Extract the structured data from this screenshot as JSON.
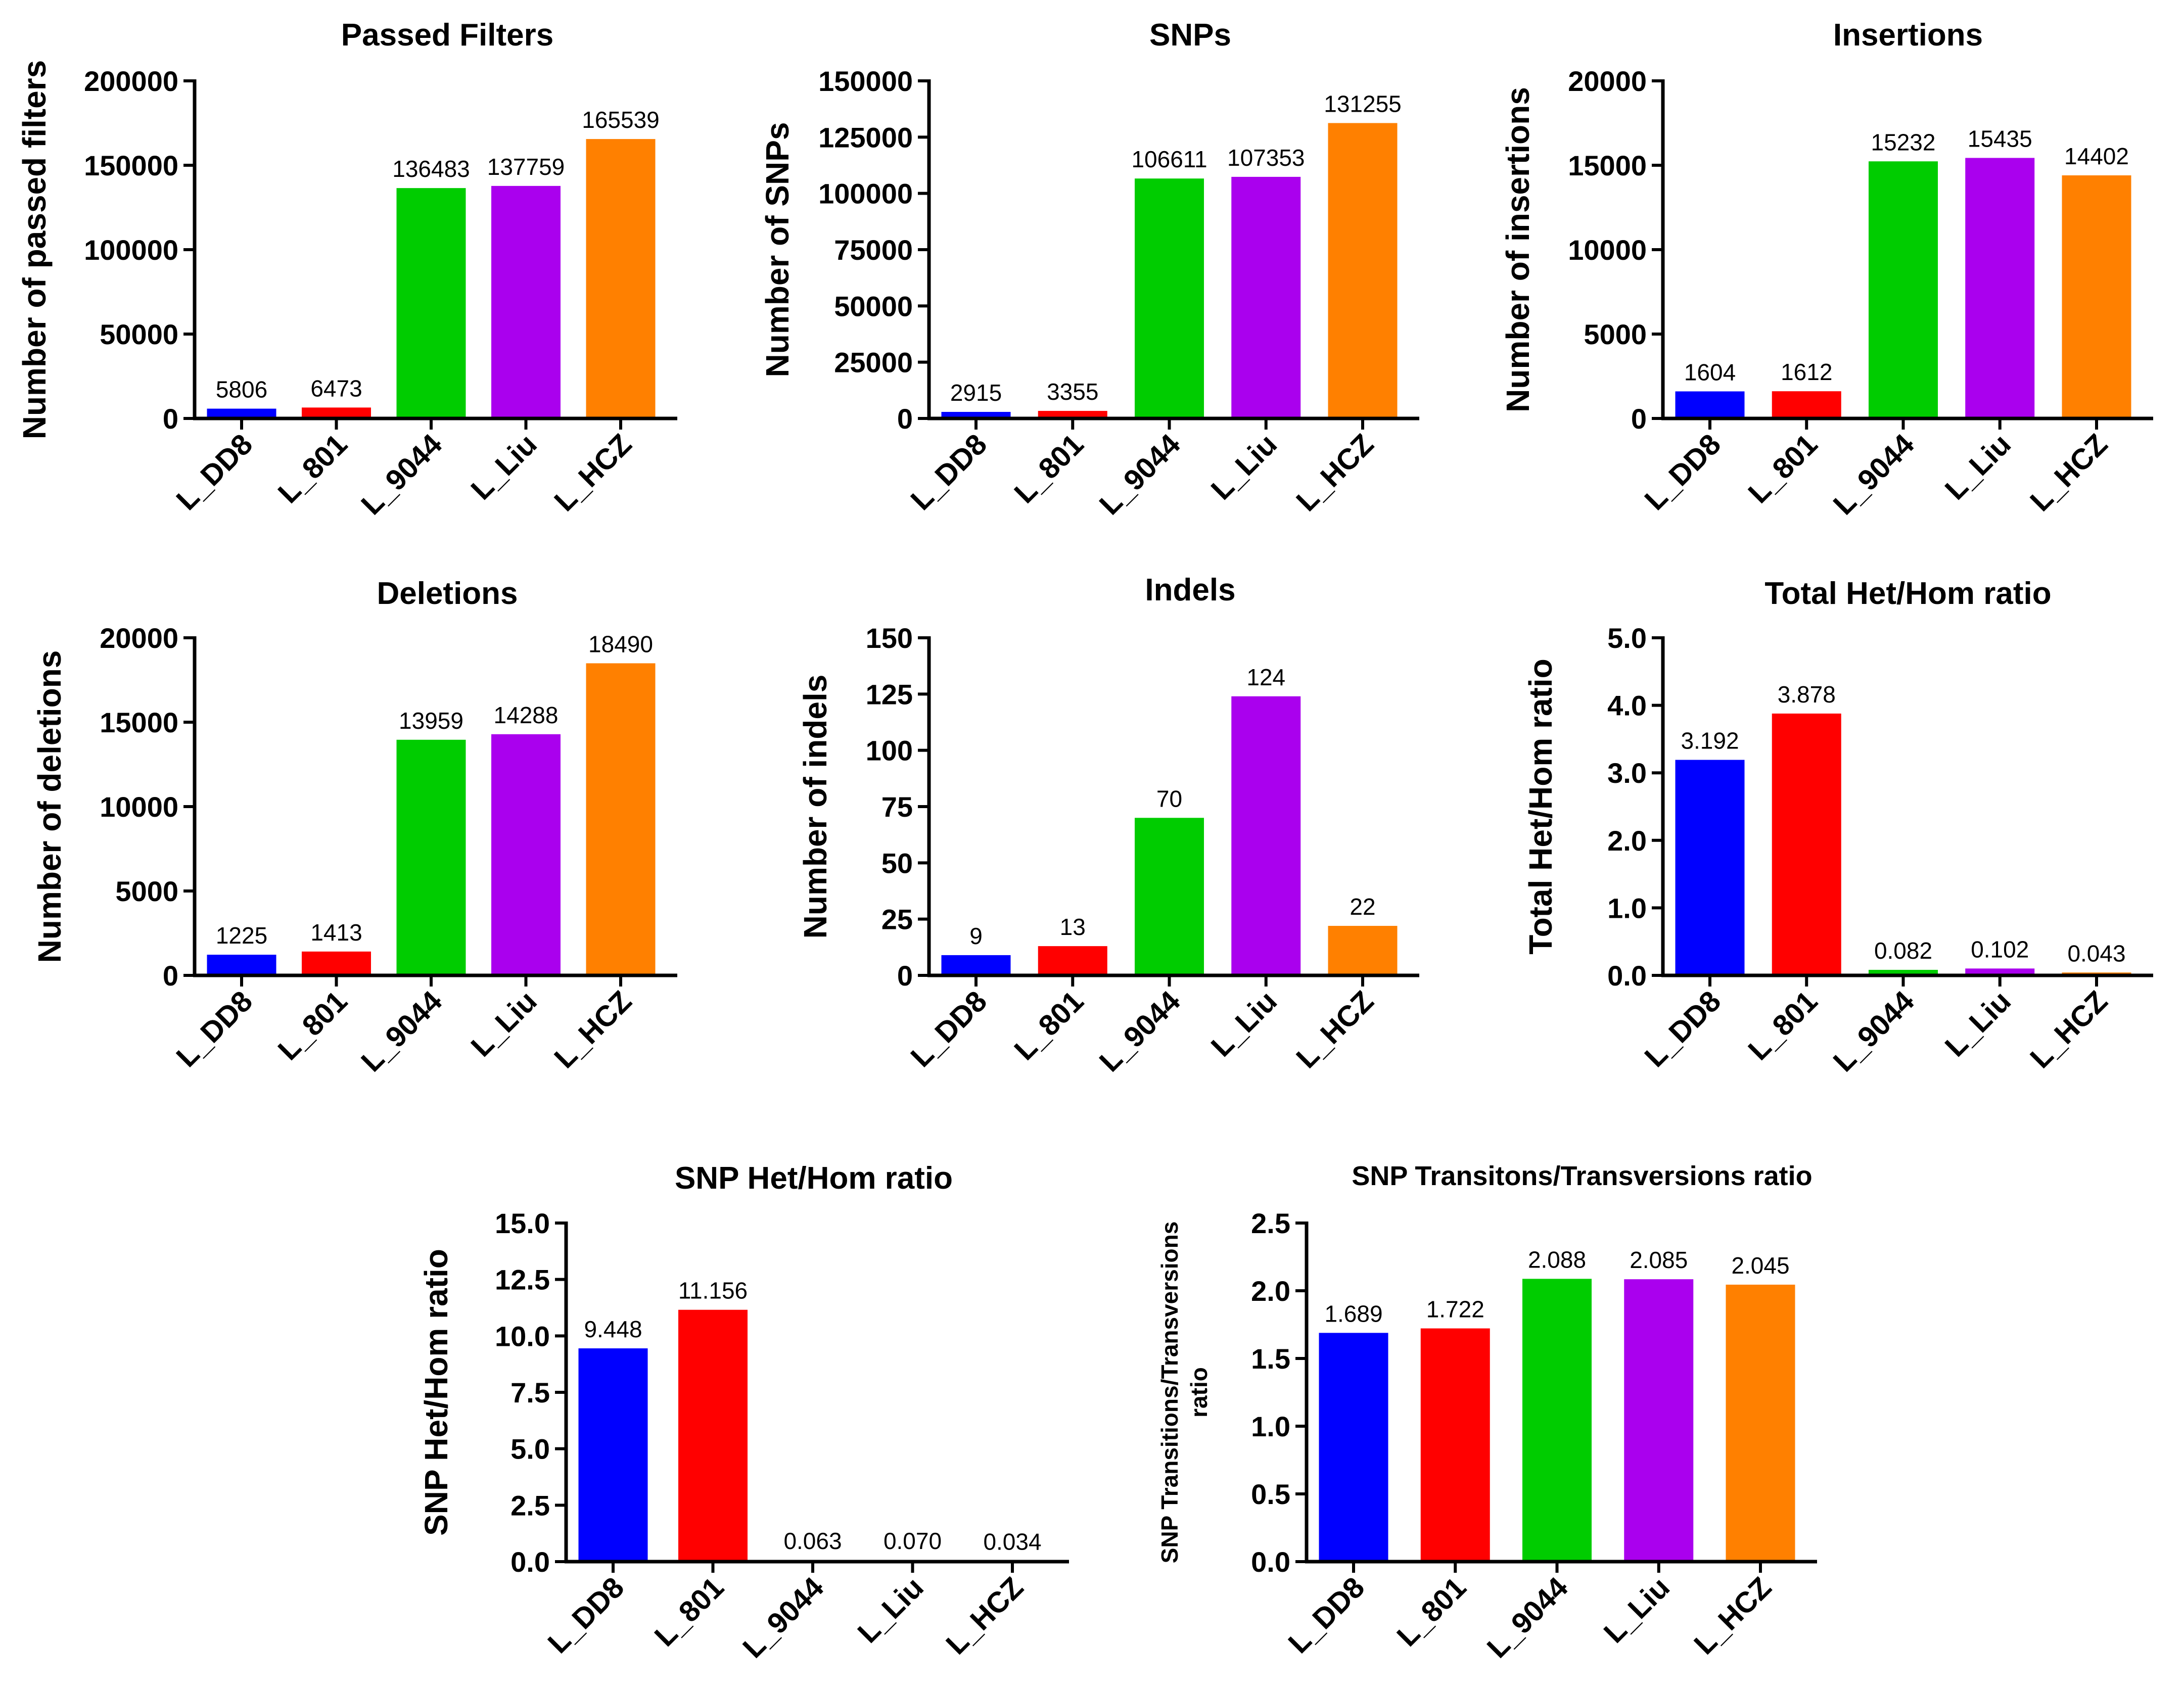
{
  "chart_data": [
    {
      "type": "bar",
      "title": "Passed Filters",
      "ylabel": "Number of passed filters",
      "categories": [
        "L_DD8",
        "L_801",
        "L_9044",
        "L_Liu",
        "L_HCZ"
      ],
      "values": [
        5806,
        6473,
        136483,
        137759,
        165539
      ],
      "value_labels": [
        "5806",
        "6473",
        "136483",
        "137759",
        "165539"
      ],
      "ylim": [
        0,
        200000
      ],
      "yticks": [
        0,
        50000,
        100000,
        150000,
        200000
      ],
      "ytick_labels": [
        "0",
        "50000",
        "100000",
        "150000",
        "200000"
      ],
      "colors": [
        "#0000ff",
        "#ff0000",
        "#00cc00",
        "#aa00ee",
        "#ff8000"
      ]
    },
    {
      "type": "bar",
      "title": "SNPs",
      "ylabel": "Number of SNPs",
      "categories": [
        "L_DD8",
        "L_801",
        "L_9044",
        "L_Liu",
        "L_HCZ"
      ],
      "values": [
        2915,
        3355,
        106611,
        107353,
        131255
      ],
      "value_labels": [
        "2915",
        "3355",
        "106611",
        "107353",
        "131255"
      ],
      "ylim": [
        0,
        150000
      ],
      "yticks": [
        0,
        25000,
        50000,
        75000,
        100000,
        125000,
        150000
      ],
      "ytick_labels": [
        "0",
        "25000",
        "50000",
        "75000",
        "100000",
        "125000",
        "150000"
      ],
      "colors": [
        "#0000ff",
        "#ff0000",
        "#00cc00",
        "#aa00ee",
        "#ff8000"
      ]
    },
    {
      "type": "bar",
      "title": "Insertions",
      "ylabel": "Number of insertions",
      "categories": [
        "L_DD8",
        "L_801",
        "L_9044",
        "L_Liu",
        "L_HCZ"
      ],
      "values": [
        1604,
        1612,
        15232,
        15435,
        14402
      ],
      "value_labels": [
        "1604",
        "1612",
        "15232",
        "15435",
        "14402"
      ],
      "ylim": [
        0,
        20000
      ],
      "yticks": [
        0,
        5000,
        10000,
        15000,
        20000
      ],
      "ytick_labels": [
        "0",
        "5000",
        "10000",
        "15000",
        "20000"
      ],
      "colors": [
        "#0000ff",
        "#ff0000",
        "#00cc00",
        "#aa00ee",
        "#ff8000"
      ]
    },
    {
      "type": "bar",
      "title": "Deletions",
      "ylabel": "Number of deletions",
      "categories": [
        "L_DD8",
        "L_801",
        "L_9044",
        "L_Liu",
        "L_HCZ"
      ],
      "values": [
        1225,
        1413,
        13959,
        14288,
        18490
      ],
      "value_labels": [
        "1225",
        "1413",
        "13959",
        "14288",
        "18490"
      ],
      "ylim": [
        0,
        20000
      ],
      "yticks": [
        0,
        5000,
        10000,
        15000,
        20000
      ],
      "ytick_labels": [
        "0",
        "5000",
        "10000",
        "15000",
        "20000"
      ],
      "colors": [
        "#0000ff",
        "#ff0000",
        "#00cc00",
        "#aa00ee",
        "#ff8000"
      ]
    },
    {
      "type": "bar",
      "title": "Indels",
      "ylabel": "Number of indels",
      "categories": [
        "L_DD8",
        "L_801",
        "L_9044",
        "L_Liu",
        "L_HCZ"
      ],
      "values": [
        9,
        13,
        70,
        124,
        22
      ],
      "value_labels": [
        "9",
        "13",
        "70",
        "124",
        "22"
      ],
      "ylim": [
        0,
        150
      ],
      "yticks": [
        0,
        25,
        50,
        75,
        100,
        125,
        150
      ],
      "ytick_labels": [
        "0",
        "25",
        "50",
        "75",
        "100",
        "125",
        "150"
      ],
      "colors": [
        "#0000ff",
        "#ff0000",
        "#00cc00",
        "#aa00ee",
        "#ff8000"
      ]
    },
    {
      "type": "bar",
      "title": "Total Het/Hom ratio",
      "ylabel": "Total Het/Hom ratio",
      "categories": [
        "L_DD8",
        "L_801",
        "L_9044",
        "L_Liu",
        "L_HCZ"
      ],
      "values": [
        3.192,
        3.878,
        0.082,
        0.102,
        0.043
      ],
      "value_labels": [
        "3.192",
        "3.878",
        "0.082",
        "0.102",
        "0.043"
      ],
      "ylim": [
        0,
        5
      ],
      "yticks": [
        0,
        1,
        2,
        3,
        4,
        5
      ],
      "ytick_labels": [
        "0.0",
        "1.0",
        "2.0",
        "3.0",
        "4.0",
        "5.0"
      ],
      "colors": [
        "#0000ff",
        "#ff0000",
        "#00cc00",
        "#aa00ee",
        "#ff8000"
      ]
    },
    {
      "type": "bar",
      "title": "SNP Het/Hom ratio",
      "ylabel": "SNP Het/Hom ratio",
      "categories": [
        "L_DD8",
        "L_801",
        "L_9044",
        "L_Liu",
        "L_HCZ"
      ],
      "values": [
        9.448,
        11.156,
        0.063,
        0.07,
        0.034
      ],
      "value_labels": [
        "9.448",
        "11.156",
        "0.063",
        "0.070",
        "0.034"
      ],
      "ylim": [
        0,
        15
      ],
      "yticks": [
        0,
        2.5,
        5,
        7.5,
        10,
        12.5,
        15
      ],
      "ytick_labels": [
        "0.0",
        "2.5",
        "5.0",
        "7.5",
        "10.0",
        "12.5",
        "15.0"
      ],
      "colors": [
        "#0000ff",
        "#ff0000",
        "#00cc00",
        "#aa00ee",
        "#ff8000"
      ]
    },
    {
      "type": "bar",
      "title": "SNP Transitons/Transversions ratio",
      "ylabel": [
        "SNP Transitions/Transversions",
        "ratio"
      ],
      "categories": [
        "L_DD8",
        "L_801",
        "L_9044",
        "L_Liu",
        "L_HCZ"
      ],
      "values": [
        1.689,
        1.722,
        2.088,
        2.085,
        2.045
      ],
      "value_labels": [
        "1.689",
        "1.722",
        "2.088",
        "2.085",
        "2.045"
      ],
      "ylim": [
        0,
        2.5
      ],
      "yticks": [
        0,
        0.5,
        1,
        1.5,
        2,
        2.5
      ],
      "ytick_labels": [
        "0.0",
        "0.5",
        "1.0",
        "1.5",
        "2.0",
        "2.5"
      ],
      "colors": [
        "#0000ff",
        "#ff0000",
        "#00cc00",
        "#aa00ee",
        "#ff8000"
      ]
    }
  ]
}
